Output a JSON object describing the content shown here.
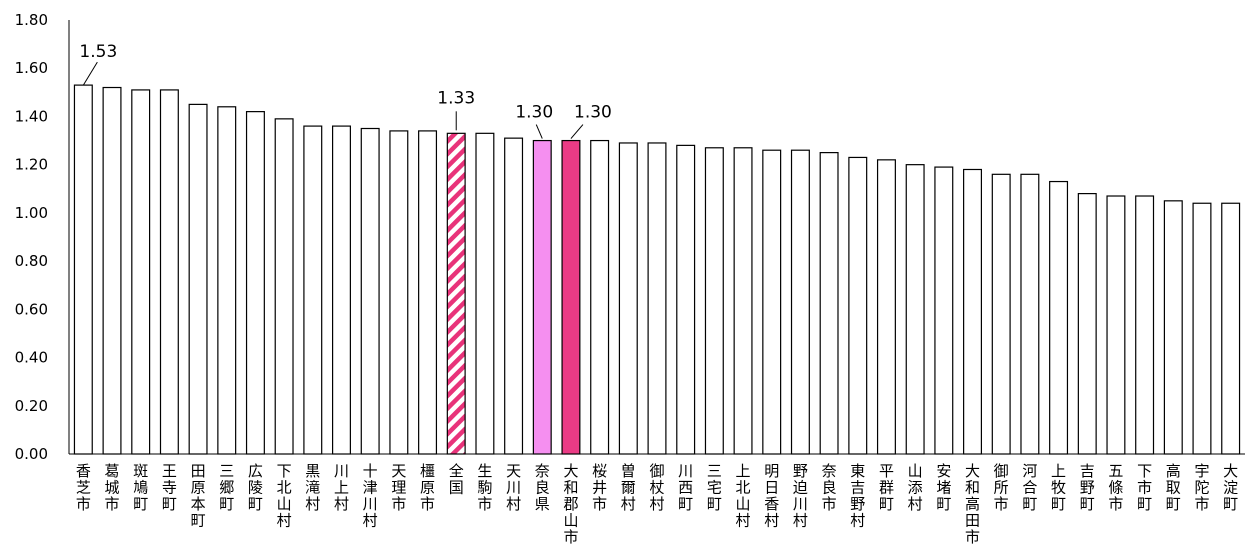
{
  "chart_data": {
    "type": "bar",
    "title": "",
    "xlabel": "",
    "ylabel": "",
    "ylim": [
      0,
      1.8
    ],
    "y_ticks": [
      "0.00",
      "0.20",
      "0.40",
      "0.60",
      "0.80",
      "1.00",
      "1.20",
      "1.40",
      "1.60",
      "1.80"
    ],
    "grid": false,
    "categories": [
      "香芝市",
      "葛城市",
      "斑鳩町",
      "王寺町",
      "田原本町",
      "三郷町",
      "広陵町",
      "下北山村",
      "黒滝村",
      "川上村",
      "十津川村",
      "天理市",
      "橿原市",
      "全国",
      "生駒市",
      "天川村",
      "奈良県",
      "大和郡山市",
      "桜井市",
      "曽爾村",
      "御杖村",
      "川西町",
      "三宅町",
      "上北山村",
      "明日香村",
      "野迫川村",
      "奈良市",
      "東吉野村",
      "平群町",
      "山添村",
      "安堵町",
      "大和高田市",
      "御所市",
      "河合町",
      "上牧町",
      "吉野町",
      "五條市",
      "下市町",
      "高取町",
      "宇陀市",
      "大淀町"
    ],
    "values": [
      1.53,
      1.52,
      1.51,
      1.51,
      1.45,
      1.44,
      1.42,
      1.39,
      1.36,
      1.36,
      1.35,
      1.34,
      1.34,
      1.33,
      1.33,
      1.31,
      1.3,
      1.3,
      1.3,
      1.29,
      1.29,
      1.28,
      1.27,
      1.27,
      1.26,
      1.26,
      1.25,
      1.23,
      1.22,
      1.2,
      1.19,
      1.18,
      1.16,
      1.16,
      1.13,
      1.08,
      1.07,
      1.07,
      1.05,
      1.04,
      1.04
    ],
    "highlights": [
      {
        "category": "全国",
        "style": "hatched",
        "color": "#e8337a"
      },
      {
        "category": "奈良県",
        "style": "solid",
        "color": "#f58ff0"
      },
      {
        "category": "大和郡山市",
        "style": "solid",
        "color": "#ea3b85"
      }
    ],
    "data_labels": [
      {
        "category": "香芝市",
        "text": "1.53"
      },
      {
        "category": "全国",
        "text": "1.33"
      },
      {
        "category": "奈良県",
        "text": "1.30"
      },
      {
        "category": "大和郡山市",
        "text": "1.30"
      }
    ]
  }
}
